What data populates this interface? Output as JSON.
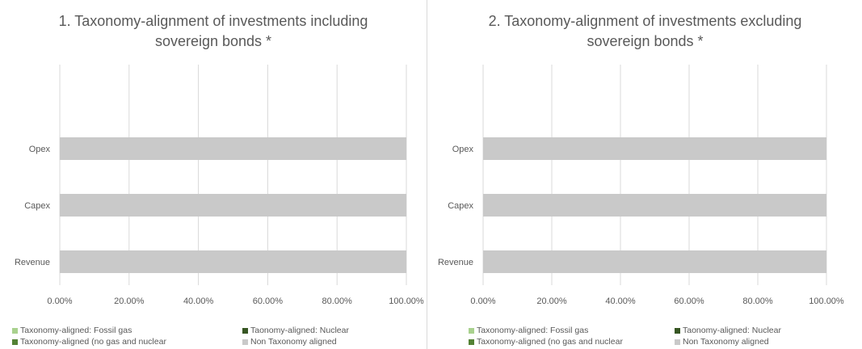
{
  "chart_data": [
    {
      "type": "bar",
      "orientation": "horizontal",
      "stacked": true,
      "title": "1. Taxonomy-alignment of investments including sovereign bonds *",
      "title_lines": [
        "1. Taxonomy-alignment of investments including",
        "sovereign bonds *"
      ],
      "categories": [
        "Opex",
        "Capex",
        "Revenue"
      ],
      "series": [
        {
          "name": "Taxonomy-aligned: Fossil gas",
          "color": "#a9d18e",
          "values": [
            0,
            0,
            0
          ]
        },
        {
          "name": "Taonomy-aligned: Nuclear",
          "color": "#375623",
          "values": [
            0,
            0,
            0
          ]
        },
        {
          "name": "Taxonomy-aligned (no gas and nuclear",
          "color": "#548235",
          "values": [
            0,
            0,
            0
          ]
        },
        {
          "name": "Non Taxonomy aligned",
          "color": "#c9c9c9",
          "values": [
            100,
            100,
            100
          ]
        }
      ],
      "xticks": [
        "0.00%",
        "20.00%",
        "40.00%",
        "60.00%",
        "80.00%",
        "100.00%"
      ],
      "xlim": [
        0,
        100
      ],
      "grid": true,
      "legend_position": "bottom"
    },
    {
      "type": "bar",
      "orientation": "horizontal",
      "stacked": true,
      "title": "2. Taxonomy-alignment of investments excluding sovereign bonds *",
      "title_lines": [
        "2. Taxonomy-alignment of investments excluding",
        "sovereign bonds *"
      ],
      "categories": [
        "Opex",
        "Capex",
        "Revenue"
      ],
      "series": [
        {
          "name": "Taxonomy-aligned: Fossil gas",
          "color": "#a9d18e",
          "values": [
            0,
            0,
            0
          ]
        },
        {
          "name": "Taonomy-aligned: Nuclear",
          "color": "#375623",
          "values": [
            0,
            0,
            0
          ]
        },
        {
          "name": "Taxonomy-aligned (no gas and nuclear",
          "color": "#548235",
          "values": [
            0,
            0,
            0
          ]
        },
        {
          "name": "Non Taxonomy aligned",
          "color": "#c9c9c9",
          "values": [
            100,
            100,
            100
          ]
        }
      ],
      "xticks": [
        "0.00%",
        "20.00%",
        "40.00%",
        "60.00%",
        "80.00%",
        "100.00%"
      ],
      "xlim": [
        0,
        100
      ],
      "grid": true,
      "legend_position": "bottom"
    }
  ]
}
